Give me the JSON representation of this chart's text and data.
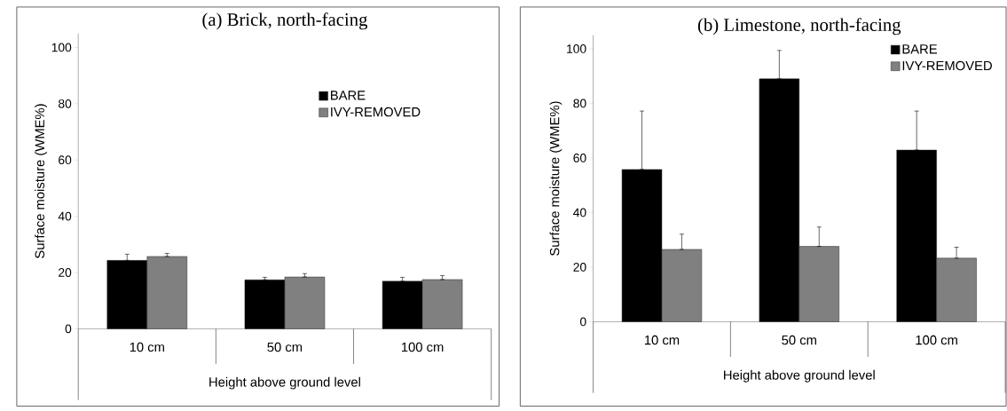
{
  "chart_data": [
    {
      "type": "bar",
      "title": "(a) Brick, north-facing",
      "xlabel": "Height above ground level",
      "ylabel": "Surface moisture (WME%)",
      "categories": [
        "10 cm",
        "50 cm",
        "100 cm"
      ],
      "series": [
        {
          "name": "BARE",
          "color": "#000000",
          "values": [
            24.3,
            17.4,
            16.9
          ],
          "errors": [
            [
              24.3,
              26.5
            ],
            [
              17.4,
              18.3
            ],
            [
              16.9,
              18.3
            ]
          ]
        },
        {
          "name": "IVY-REMOVED",
          "color": "#808080",
          "values": [
            25.7,
            18.4,
            17.5
          ],
          "errors": [
            [
              25.7,
              26.8
            ],
            [
              18.4,
              19.6
            ],
            [
              17.5,
              18.9
            ]
          ]
        }
      ],
      "ylim": [
        0,
        105
      ],
      "yticks": [
        0,
        20,
        40,
        60,
        80,
        100
      ],
      "legend": "right"
    },
    {
      "type": "bar",
      "title": "(b) Limestone, north-facing",
      "xlabel": "Height above ground level",
      "ylabel": "Surface moisture (WME%)",
      "categories": [
        "10 cm",
        "50 cm",
        "100 cm"
      ],
      "series": [
        {
          "name": "BARE",
          "color": "#000000",
          "values": [
            55.8,
            89.0,
            62.9
          ],
          "errors": [
            [
              55.8,
              77.2
            ],
            [
              89.0,
              99.4
            ],
            [
              62.9,
              77.2
            ]
          ]
        },
        {
          "name": "IVY-REMOVED",
          "color": "#808080",
          "values": [
            26.5,
            27.6,
            23.3
          ],
          "errors": [
            [
              26.5,
              32.1
            ],
            [
              27.6,
              34.7
            ],
            [
              23.3,
              27.3
            ]
          ]
        }
      ],
      "ylim": [
        0,
        105
      ],
      "yticks": [
        0,
        20,
        40,
        60,
        80,
        100
      ],
      "legend": "top right"
    }
  ]
}
